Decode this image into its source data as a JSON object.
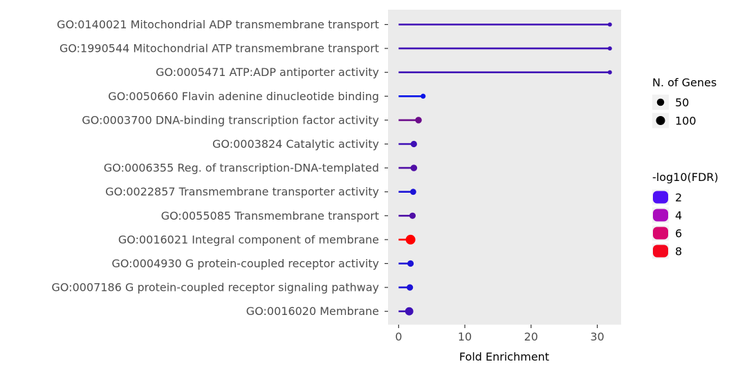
{
  "chart_data": {
    "type": "lollipop",
    "xlabel": "Fold Enrichment",
    "xlim": [
      -1.6,
      33.6
    ],
    "xticks": [
      0,
      10,
      20,
      30
    ],
    "terms": [
      {
        "label": "GO:0140021 Mitochondrial ADP transmembrane transport",
        "fold_enrichment": 31.9,
        "n_genes": 3,
        "neg_log10_fdr": 3.0
      },
      {
        "label": "GO:1990544 Mitochondrial ATP transmembrane transport",
        "fold_enrichment": 31.9,
        "n_genes": 3,
        "neg_log10_fdr": 3.0
      },
      {
        "label": "GO:0005471 ATP:ADP antiporter activity",
        "fold_enrichment": 31.9,
        "n_genes": 3,
        "neg_log10_fdr": 3.0
      },
      {
        "label": "GO:0050660 Flavin adenine dinucleotide binding",
        "fold_enrichment": 3.7,
        "n_genes": 10,
        "neg_log10_fdr": 1.5
      },
      {
        "label": "GO:0003700 DNA-binding transcription factor activity",
        "fold_enrichment": 3.0,
        "n_genes": 35,
        "neg_log10_fdr": 4.3
      },
      {
        "label": "GO:0003824 Catalytic activity",
        "fold_enrichment": 2.3,
        "n_genes": 30,
        "neg_log10_fdr": 3.0
      },
      {
        "label": "GO:0006355 Reg. of transcription-DNA-templated",
        "fold_enrichment": 2.3,
        "n_genes": 35,
        "neg_log10_fdr": 3.5
      },
      {
        "label": "GO:0022857 Transmembrane transporter activity",
        "fold_enrichment": 2.2,
        "n_genes": 25,
        "neg_log10_fdr": 2.0
      },
      {
        "label": "GO:0055085 Transmembrane transport",
        "fold_enrichment": 2.1,
        "n_genes": 30,
        "neg_log10_fdr": 3.5
      },
      {
        "label": "GO:0016021 Integral component of membrane",
        "fold_enrichment": 1.8,
        "n_genes": 125,
        "neg_log10_fdr": 8.5
      },
      {
        "label": "GO:0004930 G protein-coupled receptor activity",
        "fold_enrichment": 1.8,
        "n_genes": 30,
        "neg_log10_fdr": 2.0
      },
      {
        "label": "GO:0007186 G protein-coupled receptor signaling pathway",
        "fold_enrichment": 1.7,
        "n_genes": 30,
        "neg_log10_fdr": 2.0
      },
      {
        "label": "GO:0016020 Membrane",
        "fold_enrichment": 1.6,
        "n_genes": 75,
        "neg_log10_fdr": 3.0
      }
    ],
    "size_legend": {
      "title": "N. of Genes",
      "entries": [
        {
          "label": "50",
          "value": 50
        },
        {
          "label": "100",
          "value": 100
        }
      ]
    },
    "color_legend": {
      "title": "-log10(FDR)",
      "entries": [
        {
          "label": "2",
          "value": 2,
          "color": "#4f10f5"
        },
        {
          "label": "4",
          "value": 4,
          "color": "#ab0cbd"
        },
        {
          "label": "6",
          "value": 6,
          "color": "#d9086e"
        },
        {
          "label": "8",
          "value": 8,
          "color": "#f5061d"
        }
      ]
    },
    "color_scale": {
      "low_value": 1.5,
      "low_color": "#0a14e8",
      "high_value": 8.5,
      "high_color": "#ff0000"
    },
    "panel_background": "#ebebeb",
    "grid": false
  }
}
